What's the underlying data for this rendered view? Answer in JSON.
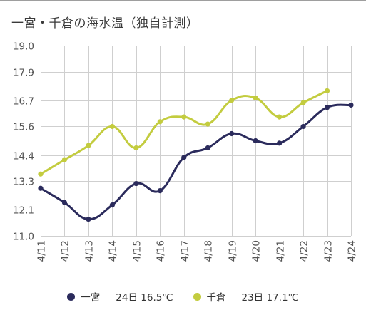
{
  "title": "一宮・千倉の海水温（独自計測）",
  "chart_data": {
    "type": "line",
    "categories": [
      "4/11",
      "4/12",
      "4/13",
      "4/14",
      "4/15",
      "4/16",
      "4/17",
      "4/18",
      "4/19",
      "4/20",
      "4/21",
      "4/22",
      "4/23",
      "4/24"
    ],
    "ylim": [
      11.0,
      19.0
    ],
    "yticks": [
      "11.0",
      "12.1",
      "13.3",
      "14.4",
      "15.6",
      "16.7",
      "17.9",
      "19.0"
    ],
    "grid": true,
    "legend_position": "bottom",
    "series": [
      {
        "name": "一宮",
        "summary": "24日 16.5℃",
        "color": "#2b2b5c",
        "values": [
          13.0,
          12.4,
          11.7,
          12.3,
          13.2,
          12.9,
          14.3,
          14.7,
          15.3,
          15.0,
          14.9,
          15.6,
          16.4,
          16.5
        ]
      },
      {
        "name": "千倉",
        "summary": "23日 17.1℃",
        "color": "#c3cc3f",
        "values": [
          13.6,
          14.2,
          14.8,
          15.6,
          14.7,
          15.8,
          16.0,
          15.7,
          16.7,
          16.8,
          16.0,
          16.6,
          17.1,
          null
        ]
      }
    ]
  }
}
